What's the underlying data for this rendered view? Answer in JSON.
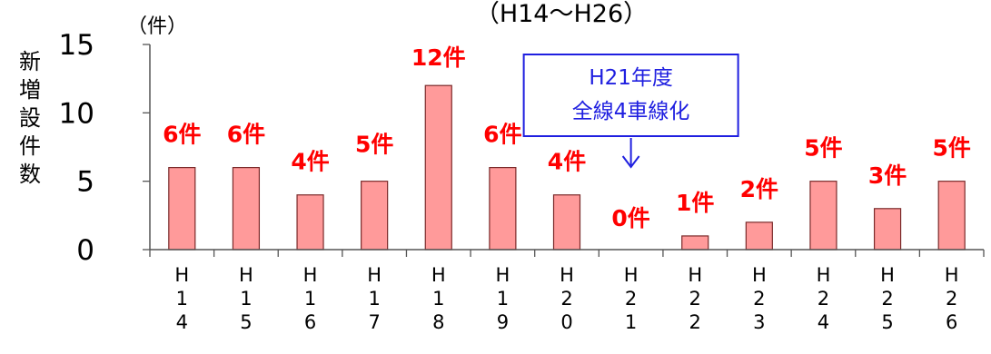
{
  "chart_data": {
    "type": "bar",
    "title": "（H14～H26）",
    "unit_label": "（件）",
    "ylabel": "新増設件数",
    "ylim": [
      0,
      15
    ],
    "yticks": [
      "0",
      "5",
      "10",
      "15"
    ],
    "grid": false,
    "categories": [
      "H14",
      "H15",
      "H16",
      "H17",
      "H18",
      "H19",
      "H20",
      "H21",
      "H22",
      "H23",
      "H24",
      "H25",
      "H26"
    ],
    "values": [
      6,
      6,
      4,
      5,
      12,
      6,
      4,
      0,
      1,
      2,
      5,
      3,
      5
    ],
    "data_labels": [
      "6件",
      "6件",
      "4件",
      "5件",
      "12件",
      "6件",
      "4件",
      "0件",
      "1件",
      "2件",
      "5件",
      "3件",
      "5件"
    ],
    "bar_color": "#ff9a9a",
    "bar_edge_color": "#7a2a2a",
    "label_color": "#ff0000",
    "annotation": {
      "lines": [
        "H21年度",
        "全線4車線化"
      ],
      "category": "H21",
      "color": "#1f1fe0"
    }
  }
}
